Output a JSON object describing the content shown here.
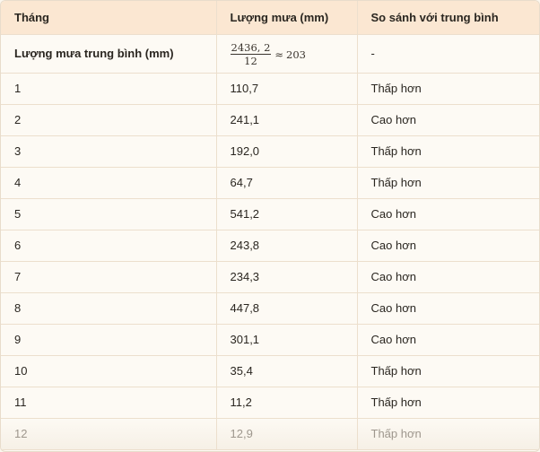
{
  "table": {
    "headers": [
      "Tháng",
      "Lượng mưa (mm)",
      "So sánh với trung bình"
    ],
    "average_row": {
      "label": "Lượng mưa trung bình (mm)",
      "formula_numerator": "2436, 2",
      "formula_denominator": "12",
      "approx_symbol": "≈",
      "result": "203",
      "comparison": "-"
    },
    "rows": [
      {
        "month": "1",
        "rainfall": "110,7",
        "comparison": "Thấp hơn"
      },
      {
        "month": "2",
        "rainfall": "241,1",
        "comparison": "Cao hơn"
      },
      {
        "month": "3",
        "rainfall": "192,0",
        "comparison": "Thấp hơn"
      },
      {
        "month": "4",
        "rainfall": "64,7",
        "comparison": "Thấp hơn"
      },
      {
        "month": "5",
        "rainfall": "541,2",
        "comparison": "Cao hơn"
      },
      {
        "month": "6",
        "rainfall": "243,8",
        "comparison": "Cao hơn"
      },
      {
        "month": "7",
        "rainfall": "234,3",
        "comparison": "Cao hơn"
      },
      {
        "month": "8",
        "rainfall": "447,8",
        "comparison": "Cao hơn"
      },
      {
        "month": "9",
        "rainfall": "301,1",
        "comparison": "Cao hơn"
      },
      {
        "month": "10",
        "rainfall": "35,4",
        "comparison": "Thấp hơn"
      },
      {
        "month": "11",
        "rainfall": "11,2",
        "comparison": "Thấp hơn"
      },
      {
        "month": "12",
        "rainfall": "12,9",
        "comparison": "Thấp hơn"
      }
    ]
  },
  "colors": {
    "header_bg": "#fbe7d2",
    "body_bg": "#fdfaf4",
    "border": "#ecdfcd"
  }
}
